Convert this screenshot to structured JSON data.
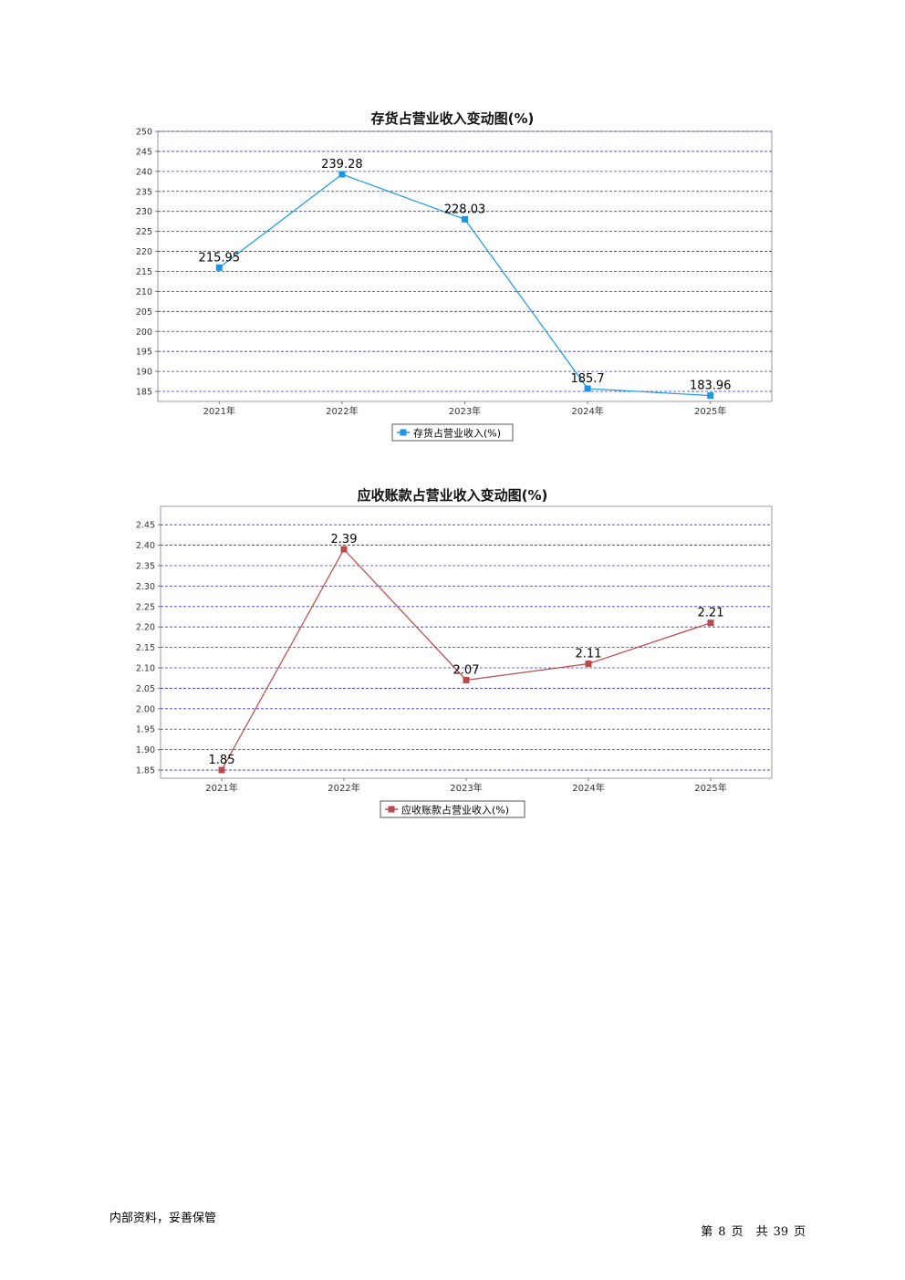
{
  "chart_data": [
    {
      "type": "line",
      "title": "存货占营业收入变动图(%)",
      "categories": [
        "2021年",
        "2022年",
        "2023年",
        "2024年",
        "2025年"
      ],
      "series": [
        {
          "name": "存货占营业收入(%)",
          "values": [
            215.95,
            239.28,
            228.03,
            185.7,
            183.96
          ],
          "color": "#1a96e6"
        }
      ],
      "data_labels": [
        "215.95",
        "239.28",
        "228.03",
        "185.7",
        "183.96"
      ],
      "ylim": [
        182.5,
        250
      ],
      "yticks": [
        185,
        190,
        195,
        200,
        205,
        210,
        215,
        220,
        225,
        230,
        235,
        240,
        245,
        250
      ],
      "ytick_labels": [
        "185",
        "190",
        "195",
        "200",
        "205",
        "210",
        "215",
        "220",
        "225",
        "230",
        "235",
        "240",
        "245",
        "250"
      ],
      "grid": true,
      "grid_color": "#3333cc",
      "legend_position": "bottom"
    },
    {
      "type": "line",
      "title": "应收账款占营业收入变动图(%)",
      "categories": [
        "2021年",
        "2022年",
        "2023年",
        "2024年",
        "2025年"
      ],
      "series": [
        {
          "name": "应收账款占营业收入(%)",
          "values": [
            1.85,
            2.39,
            2.07,
            2.11,
            2.21
          ],
          "color": "#b84a4a"
        }
      ],
      "data_labels": [
        "1.85",
        "2.39",
        "2.07",
        "2.11",
        "2.21"
      ],
      "ylim": [
        1.83,
        2.495
      ],
      "yticks": [
        1.85,
        1.9,
        1.95,
        2.0,
        2.05,
        2.1,
        2.15,
        2.2,
        2.25,
        2.3,
        2.35,
        2.4,
        2.45
      ],
      "ytick_labels": [
        "1.85",
        "1.90",
        "1.95",
        "2.00",
        "2.05",
        "2.10",
        "2.15",
        "2.20",
        "2.25",
        "2.30",
        "2.35",
        "2.40",
        "2.45"
      ],
      "grid": true,
      "grid_color": "#3333cc",
      "legend_position": "bottom"
    }
  ],
  "footer": {
    "left_text": "内部资料，妥善保管",
    "page_prefix": "第",
    "page_number": "8",
    "page_suffix": "页",
    "total_prefix": "共",
    "total_pages": "39",
    "total_suffix": "页"
  }
}
